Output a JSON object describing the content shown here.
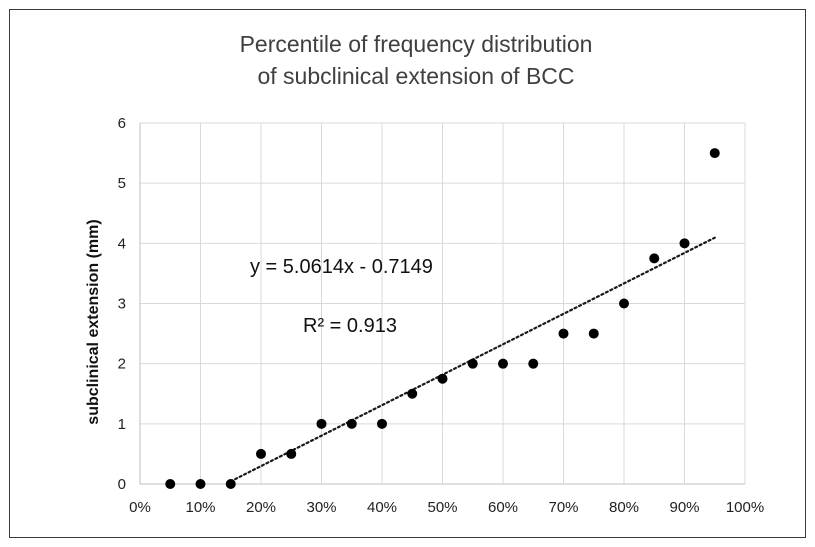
{
  "chart_data": {
    "type": "scatter",
    "title": "Percentile of frequency distribution",
    "subtitle": "of subclinical extension of BCC",
    "xlabel": "",
    "ylabel": "subclinical extension (mm)",
    "x_tick_labels": [
      "0%",
      "10%",
      "20%",
      "30%",
      "40%",
      "50%",
      "60%",
      "70%",
      "80%",
      "90%",
      "100%"
    ],
    "y_tick_labels": [
      "0",
      "1",
      "2",
      "3",
      "4",
      "5",
      "6"
    ],
    "xlim": [
      0,
      1
    ],
    "ylim": [
      0,
      6
    ],
    "grid": "horizontal and vertical",
    "x": [
      0.05,
      0.1,
      0.15,
      0.2,
      0.25,
      0.3,
      0.35,
      0.4,
      0.45,
      0.5,
      0.55,
      0.6,
      0.65,
      0.7,
      0.75,
      0.8,
      0.85,
      0.9,
      0.95
    ],
    "y": [
      0,
      0,
      0,
      0.5,
      0.5,
      1,
      1,
      1,
      1.5,
      1.75,
      2,
      2,
      2,
      2.5,
      2.5,
      3,
      3.75,
      4,
      5.5
    ],
    "trendline": {
      "type": "linear",
      "slope": 5.0614,
      "intercept": -0.7149,
      "x_range": [
        0.15,
        0.95
      ],
      "style": "dotted",
      "equation_label": "y = 5.0614x - 0.7149",
      "r2_label": "R² = 0.913"
    },
    "marker_color": "#000000",
    "trendline_color": "#1a1a1a"
  }
}
